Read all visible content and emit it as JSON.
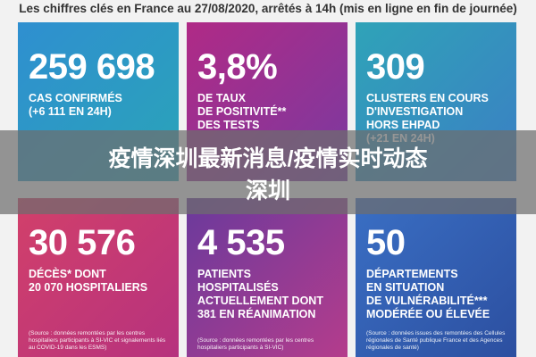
{
  "header": {
    "title": "Les chiffres clés en France au 27/08/2020, arrêtés à 14h (mis en ligne en fin de journée)"
  },
  "tiles": [
    {
      "number": "259 698",
      "lines": [
        "CAS CONFIRMÉS",
        "(+6 111 EN 24H)"
      ]
    },
    {
      "number": "3,8%",
      "lines": [
        "DE TAUX",
        "DE POSITIVITÉ**",
        "DES TESTS"
      ]
    },
    {
      "number": "309",
      "lines": [
        "CLUSTERS EN COURS",
        "D'INVESTIGATION",
        "HORS EHPAD",
        "(+21 EN 24H)"
      ]
    },
    {
      "number": "30 576",
      "lines": [
        "DÉCÈS* DONT",
        "20 070 HOSPITALIERS"
      ],
      "source": "(Source : données remontées par les centres hospitaliers participants à SI-VIC et signalements liés au COVID-19 dans les ESMS)"
    },
    {
      "number": "4 535",
      "lines": [
        "PATIENTS",
        "HOSPITALISÉS",
        "ACTUELLEMENT DONT",
        "381 EN RÉANIMATION"
      ],
      "source": "(Source : données remontées par les centres hospitaliers participants à SI-VIC)"
    },
    {
      "number": "50",
      "lines": [
        "DÉPARTEMENTS",
        "EN SITUATION",
        "DE VULNÉRABILITÉ***",
        "MODÉRÉE OU ÉLEVÉE"
      ],
      "source": "(Source : données issues des remontées des Cellules régionales de Santé publique France et des Agences régionales de santé)"
    }
  ],
  "banner": {
    "lines": [
      "疫情深圳最新消息/疫情实时动态",
      "深圳"
    ]
  }
}
